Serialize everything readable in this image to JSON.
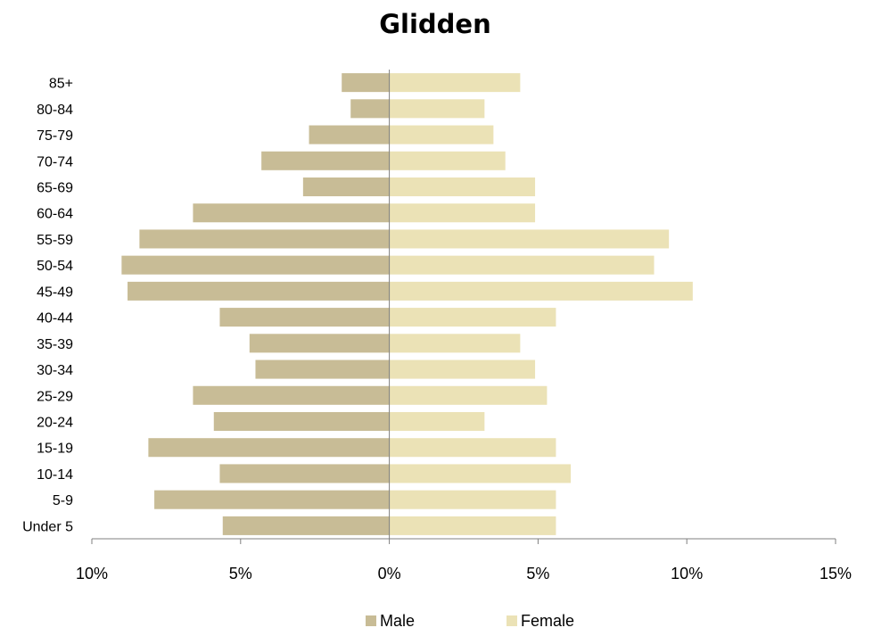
{
  "chart_data": {
    "type": "bar",
    "orientation": "horizontal",
    "title": "Glidden",
    "categories": [
      "85+",
      "80-84",
      "75-79",
      "70-74",
      "65-69",
      "60-64",
      "55-59",
      "50-54",
      "45-49",
      "40-44",
      "35-39",
      "30-34",
      "25-29",
      "20-24",
      "15-19",
      "10-14",
      "5-9",
      "Under 5"
    ],
    "series": [
      {
        "name": "Male",
        "color": "#c8bc96",
        "values": [
          1.6,
          1.3,
          2.7,
          4.3,
          2.9,
          6.6,
          8.4,
          9.0,
          8.8,
          5.7,
          4.7,
          4.5,
          6.6,
          5.9,
          8.1,
          5.7,
          7.9,
          5.6
        ]
      },
      {
        "name": "Female",
        "color": "#ebe2b6",
        "values": [
          4.4,
          3.2,
          3.5,
          3.9,
          4.9,
          4.9,
          9.4,
          8.9,
          10.2,
          5.6,
          4.4,
          4.9,
          5.3,
          3.2,
          5.6,
          6.1,
          5.6,
          5.6
        ]
      }
    ],
    "xlim": [
      -10,
      15
    ],
    "xticks": [
      {
        "value": -10,
        "label": "10%"
      },
      {
        "value": -5,
        "label": "5%"
      },
      {
        "value": 0,
        "label": "0%"
      },
      {
        "value": 5,
        "label": "5%"
      },
      {
        "value": 10,
        "label": "10%"
      },
      {
        "value": 15,
        "label": "15%"
      }
    ],
    "legend_position": "bottom",
    "grid": false
  }
}
